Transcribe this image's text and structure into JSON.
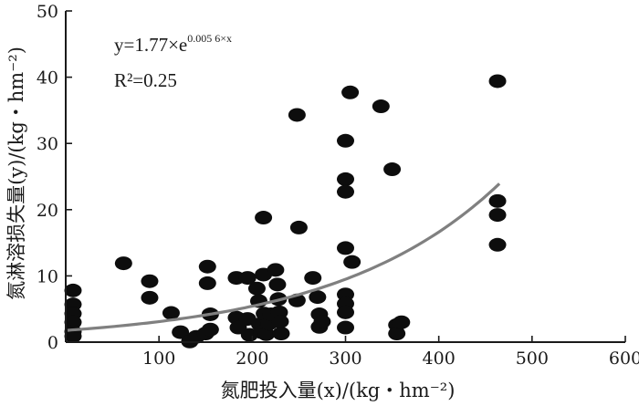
{
  "chart_data": {
    "type": "scatter",
    "xlabel": "氮肥投入量(x)/(kg・hm⁻²)",
    "ylabel": "氮淋溶损失量(y)/(kg・hm⁻²)",
    "xlim": [
      0,
      600
    ],
    "ylim": [
      0,
      50
    ],
    "xticks": [
      "100",
      "200",
      "300",
      "400",
      "500",
      "600"
    ],
    "yticks": [
      "0",
      "10",
      "20",
      "30",
      "40",
      "50"
    ],
    "grid": false,
    "annotations": {
      "equation_prefix": "y=1.77×e",
      "equation_exponent": "0.005 6×x",
      "r2": "R²=0.25"
    },
    "fit": {
      "a": 1.77,
      "b": 0.0056,
      "x_range": [
        0,
        465
      ]
    },
    "points": [
      [
        0,
        7.8
      ],
      [
        0,
        5.7
      ],
      [
        0,
        4.3
      ],
      [
        0,
        3.0
      ],
      [
        0,
        1.6
      ],
      [
        0,
        0.9
      ],
      [
        62,
        11.9
      ],
      [
        90,
        9.2
      ],
      [
        90,
        6.7
      ],
      [
        113,
        4.4
      ],
      [
        123,
        1.5
      ],
      [
        133,
        0.1
      ],
      [
        140,
        0.8
      ],
      [
        150,
        1.3
      ],
      [
        152,
        11.4
      ],
      [
        152,
        8.9
      ],
      [
        155,
        4.2
      ],
      [
        155,
        1.9
      ],
      [
        183,
        9.7
      ],
      [
        183,
        3.7
      ],
      [
        185,
        2.2
      ],
      [
        195,
        9.7
      ],
      [
        195,
        3.5
      ],
      [
        197,
        1.1
      ],
      [
        205,
        8.1
      ],
      [
        207,
        6.2
      ],
      [
        208,
        2.7
      ],
      [
        210,
        1.5
      ],
      [
        212,
        18.8
      ],
      [
        212,
        10.2
      ],
      [
        213,
        4.3
      ],
      [
        215,
        1.2
      ],
      [
        218,
        2.8
      ],
      [
        220,
        4.2
      ],
      [
        225,
        10.9
      ],
      [
        227,
        8.7
      ],
      [
        228,
        6.5
      ],
      [
        229,
        4.5
      ],
      [
        230,
        3.1
      ],
      [
        231,
        1.3
      ],
      [
        248,
        34.3
      ],
      [
        250,
        17.3
      ],
      [
        248,
        6.3
      ],
      [
        265,
        9.7
      ],
      [
        270,
        6.8
      ],
      [
        272,
        4.2
      ],
      [
        272,
        2.3
      ],
      [
        275,
        3.1
      ],
      [
        300,
        30.4
      ],
      [
        300,
        24.6
      ],
      [
        300,
        22.7
      ],
      [
        300,
        14.2
      ],
      [
        300,
        7.2
      ],
      [
        300,
        5.8
      ],
      [
        300,
        4.5
      ],
      [
        300,
        2.2
      ],
      [
        305,
        37.7
      ],
      [
        307,
        12.1
      ],
      [
        338,
        35.6
      ],
      [
        350,
        26.1
      ],
      [
        355,
        2.6
      ],
      [
        355,
        1.3
      ],
      [
        360,
        3.0
      ],
      [
        463,
        39.4
      ],
      [
        463,
        21.3
      ],
      [
        463,
        19.2
      ],
      [
        463,
        14.7
      ]
    ]
  }
}
